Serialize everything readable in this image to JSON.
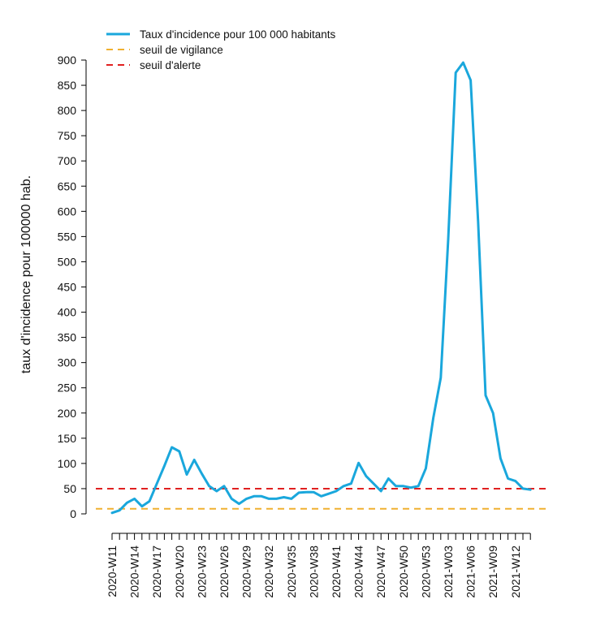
{
  "chart_data": {
    "type": "line",
    "title": "",
    "xlabel": "",
    "ylabel": "taux d'incidence pour 100000 hab.",
    "ylim": [
      0,
      900
    ],
    "y_ticks": [
      0,
      50,
      100,
      150,
      200,
      250,
      300,
      350,
      400,
      450,
      500,
      550,
      600,
      650,
      700,
      750,
      800,
      850,
      900
    ],
    "x_tick_labels": [
      "2020-W11",
      "2020-W14",
      "2020-W17",
      "2020-W20",
      "2020-W23",
      "2020-W26",
      "2020-W29",
      "2020-W32",
      "2020-W35",
      "2020-W38",
      "2020-W41",
      "2020-W44",
      "2020-W47",
      "2020-W50",
      "2020-W53",
      "2021-W03",
      "2021-W06",
      "2021-W09",
      "2021-W12"
    ],
    "grid": false,
    "legend_position": "top-left",
    "legend": [
      {
        "label": "Taux d'incidence pour 100 000 habitants",
        "style": "solid",
        "color": "#1aa7dc"
      },
      {
        "label": "seuil de vigilance",
        "style": "dashed",
        "color": "#f0b030"
      },
      {
        "label": "seuil d'alerte",
        "style": "dashed",
        "color": "#e02020"
      }
    ],
    "thresholds": [
      {
        "name": "seuil de vigilance",
        "value": 10,
        "color": "#f0b030"
      },
      {
        "name": "seuil d'alerte",
        "value": 50,
        "color": "#e02020"
      }
    ],
    "series": [
      {
        "name": "Taux d'incidence pour 100 000 habitants",
        "color": "#1aa7dc",
        "x": [
          "2020-W11",
          "2020-W12",
          "2020-W13",
          "2020-W14",
          "2020-W15",
          "2020-W16",
          "2020-W17",
          "2020-W18",
          "2020-W19",
          "2020-W20",
          "2020-W21",
          "2020-W22",
          "2020-W23",
          "2020-W24",
          "2020-W25",
          "2020-W26",
          "2020-W27",
          "2020-W28",
          "2020-W29",
          "2020-W30",
          "2020-W31",
          "2020-W32",
          "2020-W33",
          "2020-W34",
          "2020-W35",
          "2020-W36",
          "2020-W37",
          "2020-W38",
          "2020-W39",
          "2020-W40",
          "2020-W41",
          "2020-W42",
          "2020-W43",
          "2020-W44",
          "2020-W45",
          "2020-W46",
          "2020-W47",
          "2020-W48",
          "2020-W49",
          "2020-W50",
          "2020-W51",
          "2020-W52",
          "2020-W53",
          "2021-W01",
          "2021-W02",
          "2021-W03",
          "2021-W04",
          "2021-W05",
          "2021-W06",
          "2021-W07",
          "2021-W08",
          "2021-W09",
          "2021-W10",
          "2021-W11",
          "2021-W12",
          "2021-W13",
          "2021-W14"
        ],
        "values": [
          2,
          7,
          22,
          30,
          15,
          25,
          60,
          95,
          132,
          124,
          78,
          107,
          80,
          55,
          45,
          55,
          30,
          20,
          30,
          35,
          35,
          30,
          30,
          33,
          30,
          42,
          43,
          43,
          35,
          40,
          45,
          55,
          60,
          101,
          75,
          60,
          45,
          70,
          55,
          55,
          52,
          55,
          90,
          190,
          270,
          545,
          875,
          895,
          860,
          580,
          235,
          200,
          110,
          70,
          65,
          50,
          48
        ]
      }
    ]
  }
}
